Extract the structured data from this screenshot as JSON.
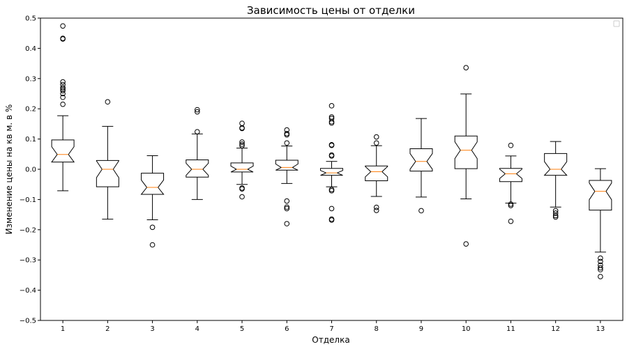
{
  "chart_data": {
    "type": "box",
    "title": "Зависимость цены от отделки",
    "xlabel": "Отделка",
    "ylabel": "Изменение цены на кв м. в %",
    "ylim": [
      -0.5,
      0.5
    ],
    "yticks": [
      -0.5,
      -0.4,
      -0.3,
      -0.2,
      -0.1,
      0.0,
      0.1,
      0.2,
      0.3,
      0.4,
      0.5
    ],
    "ytick_labels": [
      "−0.5",
      "−0.4",
      "−0.3",
      "−0.2",
      "−0.1",
      "0.0",
      "0.1",
      "0.2",
      "0.3",
      "0.4",
      "0.5"
    ],
    "notched": true,
    "legend": "top-right (empty)",
    "grid": false,
    "box_color": "#000000",
    "median_color": "#ff7f0e",
    "categories": [
      "1",
      "2",
      "3",
      "4",
      "5",
      "6",
      "7",
      "8",
      "9",
      "10",
      "11",
      "12",
      "13"
    ],
    "boxes": [
      {
        "label": "1",
        "whislo": -0.071,
        "q1": 0.024,
        "med": 0.049,
        "q3": 0.097,
        "whishi": 0.177,
        "fliers": [
          0.474,
          0.433,
          0.431,
          0.289,
          0.28,
          0.27,
          0.265,
          0.26,
          0.25,
          0.238,
          0.215
        ]
      },
      {
        "label": "2",
        "whislo": -0.165,
        "q1": -0.058,
        "med": 0.0,
        "q3": 0.029,
        "whishi": 0.142,
        "fliers": [
          0.223
        ]
      },
      {
        "label": "3",
        "whislo": -0.167,
        "q1": -0.083,
        "med": -0.06,
        "q3": -0.013,
        "whishi": 0.045,
        "fliers": [
          -0.192,
          -0.25
        ]
      },
      {
        "label": "4",
        "whislo": -0.1,
        "q1": -0.026,
        "med": 0.0,
        "q3": 0.031,
        "whishi": 0.117,
        "fliers": [
          0.197,
          0.19,
          0.124
        ]
      },
      {
        "label": "5",
        "whislo": -0.05,
        "q1": -0.009,
        "med": 0.0,
        "q3": 0.021,
        "whishi": 0.07,
        "fliers": [
          0.152,
          0.137,
          0.135,
          0.09,
          0.083,
          0.078,
          -0.062,
          -0.065,
          -0.091
        ]
      },
      {
        "label": "6",
        "whislo": -0.047,
        "q1": -0.003,
        "med": 0.006,
        "q3": 0.03,
        "whishi": 0.077,
        "fliers": [
          0.13,
          0.118,
          0.114,
          0.087,
          -0.105,
          -0.125,
          -0.13,
          -0.18
        ]
      },
      {
        "label": "7",
        "whislo": -0.058,
        "q1": -0.02,
        "med": -0.012,
        "q3": 0.003,
        "whishi": 0.026,
        "fliers": [
          0.21,
          0.173,
          0.168,
          0.157,
          0.153,
          0.081,
          0.079,
          0.047,
          0.044,
          -0.067,
          -0.071,
          -0.13,
          -0.165,
          -0.168
        ]
      },
      {
        "label": "8",
        "whislo": -0.09,
        "q1": -0.038,
        "med": -0.008,
        "q3": 0.011,
        "whishi": 0.078,
        "fliers": [
          0.107,
          0.087,
          -0.126,
          -0.136
        ]
      },
      {
        "label": "9",
        "whislo": -0.092,
        "q1": -0.006,
        "med": 0.026,
        "q3": 0.068,
        "whishi": 0.168,
        "fliers": [
          -0.137
        ]
      },
      {
        "label": "10",
        "whislo": -0.098,
        "q1": 0.002,
        "med": 0.063,
        "q3": 0.11,
        "whishi": 0.249,
        "fliers": [
          0.336,
          -0.247
        ]
      },
      {
        "label": "11",
        "whislo": -0.112,
        "q1": -0.041,
        "med": -0.015,
        "q3": 0.003,
        "whishi": 0.044,
        "fliers": [
          0.079,
          -0.115,
          -0.12,
          -0.172
        ]
      },
      {
        "label": "12",
        "whislo": -0.125,
        "q1": -0.02,
        "med": 0.0,
        "q3": 0.052,
        "whishi": 0.092,
        "fliers": [
          -0.137,
          -0.145,
          -0.153,
          -0.158
        ]
      },
      {
        "label": "13",
        "whislo": -0.274,
        "q1": -0.135,
        "med": -0.073,
        "q3": -0.037,
        "whishi": 0.002,
        "fliers": [
          -0.294,
          -0.305,
          -0.317,
          -0.326,
          -0.332,
          -0.355
        ]
      }
    ]
  }
}
